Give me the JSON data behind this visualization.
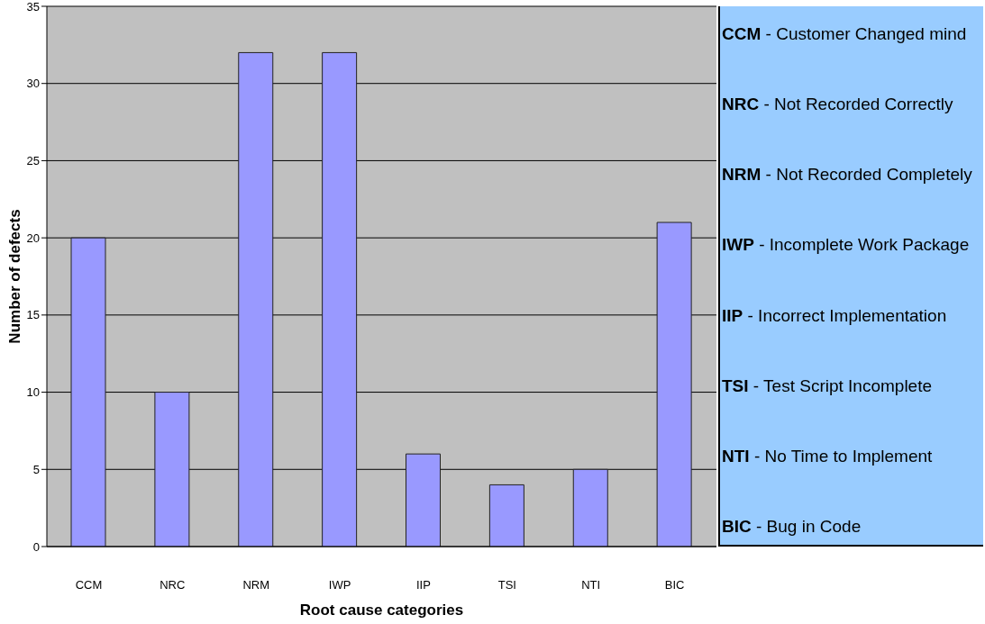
{
  "chart_data": {
    "type": "bar",
    "xlabel": "Root cause categories",
    "ylabel": "Number of defects",
    "categories": [
      "CCM",
      "NRC",
      "NRM",
      "IWP",
      "IIP",
      "TSI",
      "NTI",
      "BIC"
    ],
    "values": [
      20,
      10,
      32,
      32,
      6,
      4,
      5,
      21
    ],
    "color": "#9999ff",
    "ylim": [
      0,
      35
    ],
    "yticks": [
      0,
      5,
      10,
      15,
      20,
      25,
      30,
      35
    ],
    "grid": "y",
    "annotations": [
      "CCM - Customer Changed mind",
      "NRC - Not Recorded Correctly",
      "NRM - Not Recorded Completely",
      "IWP - Incomplete Work Package",
      "IIP - Incorrect Implementation",
      "TSI - Test Script Incomplete",
      "NTI - No Time to Implement",
      "BIC - Bug in Code"
    ]
  }
}
